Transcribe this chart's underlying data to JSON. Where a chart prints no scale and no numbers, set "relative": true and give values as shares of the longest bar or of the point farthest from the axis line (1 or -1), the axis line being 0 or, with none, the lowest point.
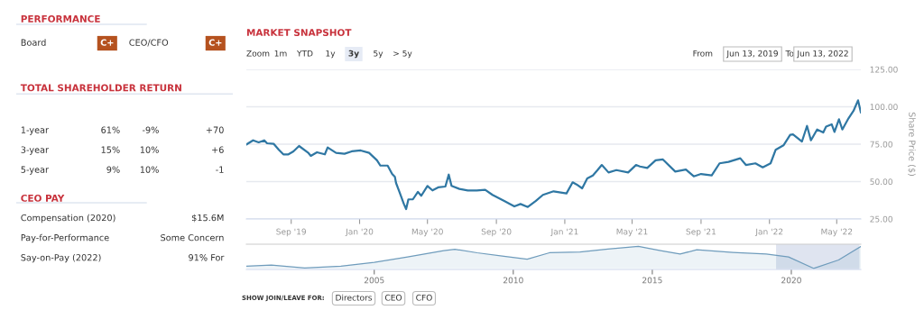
{
  "chart_data": [
    {
      "type": "other",
      "title": "PERFORMANCE",
      "annotations": [
        "Board",
        "C+",
        "CEO/CFO",
        "C+"
      ]
    },
    {
      "type": "other",
      "title": "TOTAL SHAREHOLDER RETURN",
      "annotations": [
        "1-year",
        "61%",
        "-9%",
        "+70",
        "3-year",
        "15%",
        "10%",
        "+6",
        "5-year",
        "9%",
        "10%",
        "-1"
      ]
    },
    {
      "type": "other",
      "title": "CEO PAY",
      "annotations": [
        "Compensation (2020)",
        "$15.6M",
        "Pay-for-Performance",
        "Some Concern",
        "Say-on-Pay (2022)",
        "91% For"
      ]
    },
    {
      "type": "line",
      "title": "MARKET SNAPSHOT",
      "ylabel": "Share Price ($)",
      "grid": "y",
      "x": [
        "2019-06-13",
        "2019-06-25",
        "2019-07-05",
        "2019-07-15",
        "2019-07-20",
        "2019-08-01",
        "2019-08-10",
        "2019-08-18",
        "2019-08-27",
        "2019-09-05",
        "2019-09-15",
        "2019-10-01",
        "2019-10-06",
        "2019-10-17",
        "2019-10-31",
        "2019-11-05",
        "2019-11-20",
        "2019-12-05",
        "2019-12-18",
        "2020-01-03",
        "2020-01-18",
        "2020-02-01",
        "2020-02-07",
        "2020-02-20",
        "2020-02-28",
        "2020-03-04",
        "2020-03-06",
        "2020-03-12",
        "2020-03-20",
        "2020-03-24",
        "2020-03-28",
        "2020-04-05",
        "2020-04-14",
        "2020-04-20",
        "2020-05-01",
        "2020-05-10",
        "2020-05-20",
        "2020-06-02",
        "2020-06-08",
        "2020-06-13",
        "2020-06-27",
        "2020-07-12",
        "2020-07-28",
        "2020-08-12",
        "2020-08-25",
        "2020-09-15",
        "2020-10-03",
        "2020-10-14",
        "2020-10-27",
        "2020-11-10",
        "2020-11-23",
        "2020-12-12",
        "2021-01-04",
        "2021-01-15",
        "2021-01-22",
        "2021-02-01",
        "2021-02-10",
        "2021-02-20",
        "2021-02-28",
        "2021-03-08",
        "2021-03-20",
        "2021-04-03",
        "2021-04-24",
        "2021-05-08",
        "2021-05-15",
        "2021-05-28",
        "2021-06-12",
        "2021-06-25",
        "2021-07-17",
        "2021-08-05",
        "2021-08-19",
        "2021-09-01",
        "2021-09-20",
        "2021-10-04",
        "2021-10-20",
        "2021-11-10",
        "2021-11-20",
        "2021-12-07",
        "2021-12-20",
        "2022-01-03",
        "2022-01-12",
        "2022-01-26",
        "2022-02-07",
        "2022-02-12",
        "2022-02-28",
        "2022-03-09",
        "2022-03-16",
        "2022-03-27",
        "2022-04-07",
        "2022-04-12",
        "2022-04-22",
        "2022-04-27",
        "2022-05-05",
        "2022-05-11",
        "2022-05-22",
        "2022-05-31",
        "2022-06-08",
        "2022-06-13"
      ],
      "series": [
        {
          "color": "#2f77a3",
          "values": [
            74.8,
            77.6,
            76.2,
            77.6,
            75.6,
            75.2,
            71.2,
            68.2,
            68.2,
            70.2,
            73.8,
            69.4,
            67.2,
            69.6,
            68.2,
            72.8,
            69.2,
            68.6,
            70.2,
            70.8,
            69.2,
            64.2,
            60.7,
            60.7,
            55.1,
            53.1,
            49.1,
            43.1,
            35.0,
            31.6,
            38.1,
            38.1,
            43.1,
            40.5,
            47.1,
            44.1,
            46.1,
            46.7,
            54.7,
            47.1,
            45.1,
            44.1,
            44.1,
            44.5,
            41.1,
            37.0,
            33.4,
            35.0,
            33.0,
            37.0,
            41.1,
            43.5,
            42.1,
            49.5,
            48.1,
            45.5,
            52.1,
            54.1,
            57.5,
            61.1,
            56.1,
            57.7,
            56.1,
            61.1,
            60.1,
            59.1,
            64.2,
            64.8,
            56.7,
            58.1,
            53.5,
            55.1,
            54.1,
            62.2,
            63.2,
            65.6,
            61.1,
            62.2,
            59.5,
            62.2,
            71.2,
            74.2,
            81.2,
            81.6,
            76.8,
            87.2,
            77.6,
            84.8,
            82.8,
            86.8,
            88.3,
            83.2,
            91.7,
            84.8,
            92.3,
            97.3,
            104.3,
            96.3
          ]
        }
      ],
      "xlim": [
        "2019-06-13",
        "2022-06-13"
      ],
      "xticks": [
        {
          "value": "2019-09-01",
          "label": "Sep '19"
        },
        {
          "value": "2020-01-01",
          "label": "Jan '20"
        },
        {
          "value": "2020-05-01",
          "label": "May '20"
        },
        {
          "value": "2020-09-01",
          "label": "Sep '20"
        },
        {
          "value": "2021-01-01",
          "label": "Jan '21"
        },
        {
          "value": "2021-05-01",
          "label": "May '21"
        },
        {
          "value": "2021-09-01",
          "label": "Sep '21"
        },
        {
          "value": "2022-01-01",
          "label": "Jan '22"
        },
        {
          "value": "2022-05-01",
          "label": "May '22"
        }
      ],
      "ylim": [
        25,
        125
      ],
      "yticks": [
        {
          "value": 25,
          "label": "25.00"
        },
        {
          "value": 50,
          "label": "50.00"
        },
        {
          "value": 75,
          "label": "75.00"
        },
        {
          "value": 100,
          "label": "100.00"
        },
        {
          "value": 125,
          "label": "125.00"
        }
      ],
      "annotations": [
        "Zoom",
        "1m",
        "YTD",
        "1y",
        "3y",
        "5y",
        "> 5y",
        "From",
        "Jun 13, 2019",
        "To",
        "Jun 13, 2022",
        "SHOW JOIN/LEAVE FOR:",
        "Directors",
        "CEO",
        "CFO"
      ]
    },
    {
      "type": "area",
      "relative": true,
      "tick_labels": "x",
      "x": [
        2000.4,
        2001.3,
        2002.5,
        2003.8,
        2005,
        2006.2,
        2007.5,
        2007.9,
        2008.7,
        2009.6,
        2010.5,
        2011.3,
        2012.4,
        2013.4,
        2014.5,
        2015.3,
        2016,
        2016.6,
        2017.9,
        2019.1,
        2019.9,
        2020.8,
        2021.7,
        2022.5
      ],
      "series": [
        {
          "color": "#6f9cbc",
          "values": [
            0.1,
            0.15,
            0.02,
            0.1,
            0.27,
            0.52,
            0.81,
            0.87,
            0.71,
            0.56,
            0.42,
            0.71,
            0.75,
            0.88,
            1,
            0.81,
            0.65,
            0.85,
            0.73,
            0.65,
            0.52,
            0,
            0.38,
            1
          ]
        }
      ],
      "xlim": [
        2000.4,
        2022.5
      ],
      "xticks": [
        2005,
        2010,
        2015,
        2020
      ],
      "bands": [
        {
          "axis": "x",
          "from": 2019.45,
          "to": 2022.45,
          "color": "#c5cee3"
        }
      ]
    }
  ]
}
